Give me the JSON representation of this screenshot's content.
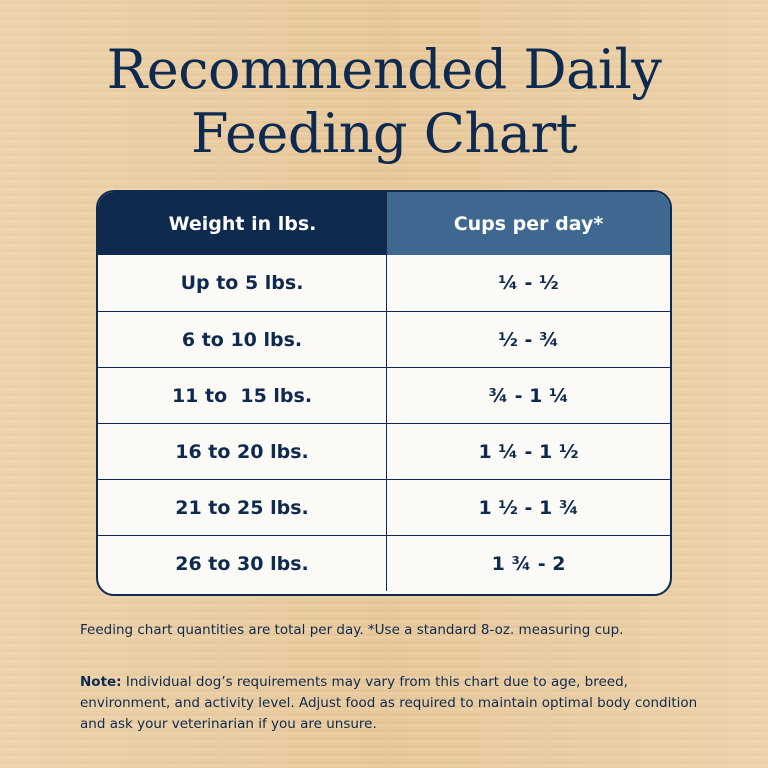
{
  "title": {
    "line1": "Recommended Daily",
    "line2": "Feeding Chart"
  },
  "table": {
    "headers": {
      "weight": "Weight in lbs.",
      "cups": "Cups per day*"
    },
    "rows": [
      {
        "weight": "Up to 5 lbs.",
        "cups": "¼ - ½"
      },
      {
        "weight": "6 to 10 lbs.",
        "cups": "½ - ¾"
      },
      {
        "weight": "11 to  15 lbs.",
        "cups": "¾ - 1 ¼"
      },
      {
        "weight": "16 to 20 lbs.",
        "cups": "1 ¼ - 1 ½"
      },
      {
        "weight": "21 to 25 lbs.",
        "cups": "1 ½ - 1 ¾"
      },
      {
        "weight": "26 to 30 lbs.",
        "cups": "1 ¾ - 2"
      }
    ]
  },
  "footnote": "Feeding chart quantities are total per day. *Use a standard 8-oz. measuring cup.",
  "note": {
    "label": "Note:",
    "text": " Individual dog’s requirements may vary from this chart due to age, breed, environment, and activity level. Adjust food as required to maintain optimal body condition and ask your veterinarian if you are unsure."
  },
  "colors": {
    "navy": "#0f2a4f",
    "header_light": "#3f6890",
    "background": "#ecd0a4"
  }
}
